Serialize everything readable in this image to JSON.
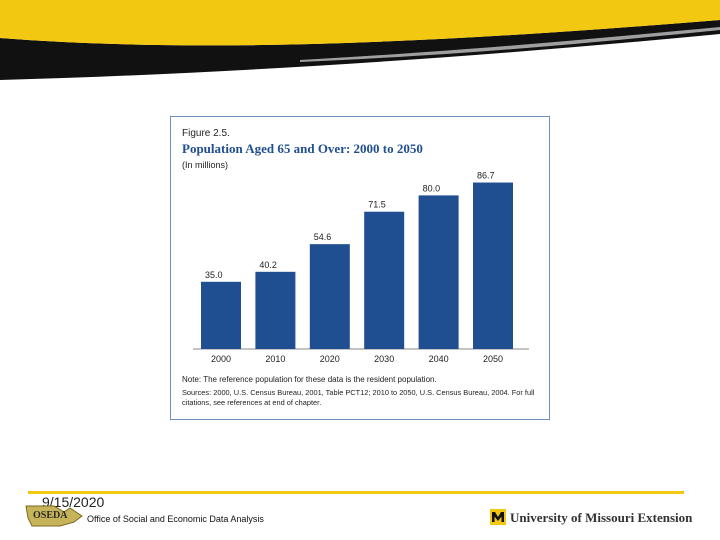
{
  "slide": {
    "date": "9/15/2020",
    "office": "Office of Social and Economic Data Analysis",
    "logo_text": "OSEDA",
    "extension": "University of Missouri Extension",
    "colors": {
      "banner_yellow": "#f2c811",
      "banner_black": "#111111",
      "bar_blue": "#1f4e91"
    }
  },
  "figure": {
    "label": "Figure 2.5.",
    "title": "Population Aged 65 and Over:  2000 to 2050",
    "subtitle": "(In millions)",
    "note": "Note: The reference population for these data is the resident population.",
    "sources": "Sources: 2000, U.S. Census Bureau, 2001, Table PCT12; 2010 to 2050, U.S. Census Bureau, 2004.  For full citations, see references at end of chapter."
  },
  "chart_data": {
    "type": "bar",
    "title": "Population Aged 65 and Over:  2000 to 2050",
    "ylabel": "(In millions)",
    "xlabel": "",
    "categories": [
      "2000",
      "2010",
      "2020",
      "2030",
      "2040",
      "2050"
    ],
    "values": [
      35.0,
      40.2,
      54.6,
      71.5,
      80.0,
      86.7
    ],
    "value_labels": [
      "35.0",
      "40.2",
      "54.6",
      "71.5",
      "80.0",
      "86.7"
    ],
    "ylim": [
      0,
      100
    ],
    "grid": false
  }
}
